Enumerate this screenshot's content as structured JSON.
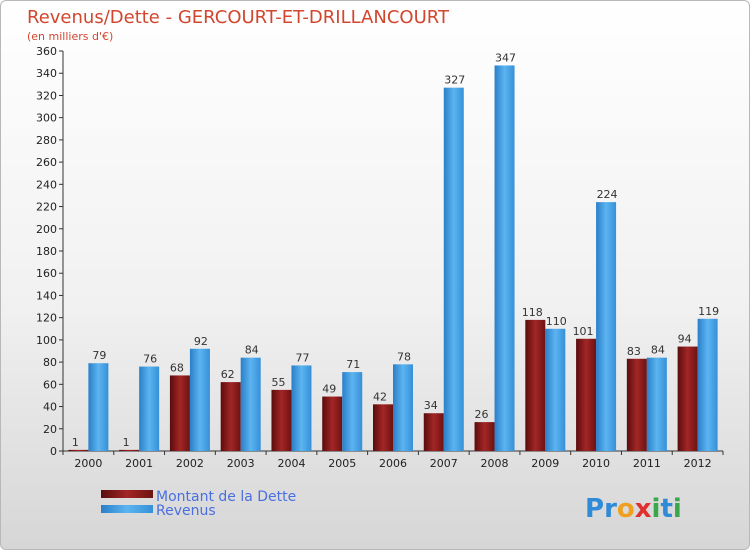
{
  "chart_data": {
    "type": "bar",
    "title": "Revenus/Dette - GERCOURT-ET-DRILLANCOURT",
    "subtitle": "(en milliers d'€)",
    "categories": [
      "2000",
      "2001",
      "2002",
      "2003",
      "2004",
      "2005",
      "2006",
      "2007",
      "2008",
      "2009",
      "2010",
      "2011",
      "2012"
    ],
    "series": [
      {
        "name": "Montant de la Dette",
        "color": "#8a1a1a",
        "values": [
          1,
          1,
          68,
          62,
          55,
          49,
          42,
          34,
          26,
          118,
          101,
          83,
          94
        ]
      },
      {
        "name": "Revenus",
        "color": "#3d9ee6",
        "values": [
          79,
          76,
          92,
          84,
          77,
          71,
          78,
          327,
          347,
          110,
          224,
          84,
          119
        ]
      }
    ],
    "ylim": [
      0,
      360
    ],
    "yticks": [
      0,
      20,
      40,
      60,
      80,
      100,
      120,
      140,
      160,
      180,
      200,
      220,
      240,
      260,
      280,
      300,
      320,
      340,
      360
    ],
    "grid": false,
    "legend_position": "bottom-left"
  },
  "logo": {
    "letters": [
      {
        "ch": "P",
        "color": "#2f8ad8"
      },
      {
        "ch": "r",
        "color": "#2f8ad8"
      },
      {
        "ch": "o",
        "color": "#f0a020"
      },
      {
        "ch": "x",
        "color": "#e03030"
      },
      {
        "ch": "i",
        "color": "#3aa84a"
      },
      {
        "ch": "t",
        "color": "#2f8ad8"
      },
      {
        "ch": "i",
        "color": "#3aa84a"
      }
    ]
  }
}
